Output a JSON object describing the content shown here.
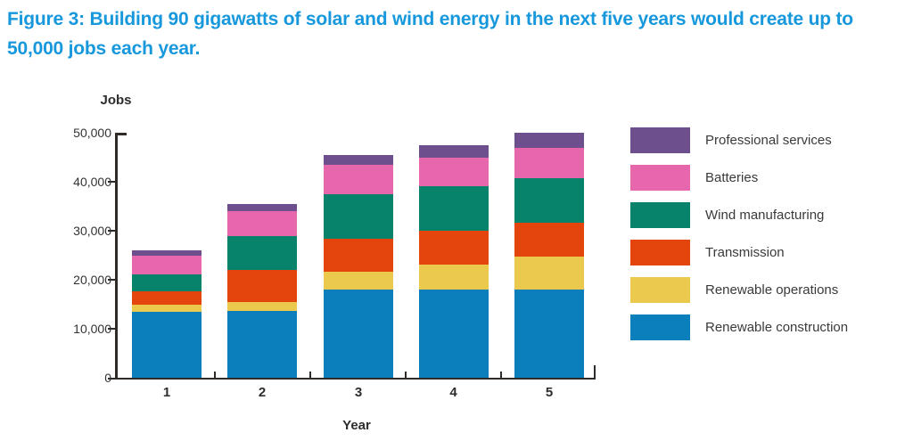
{
  "figure": {
    "title": "Figure 3: Building 90 gigawatts of solar and wind energy in the next five years would create up to 50,000 jobs each year.",
    "title_lines": [
      "Figure 3: Building 90 gigawatts of solar and wind energy in the next five years would create up to",
      "50,000 jobs each year."
    ],
    "title_color": "#1798dd"
  },
  "chart_data": {
    "type": "bar",
    "stacked": true,
    "xlabel": "Year",
    "ylabel": "Jobs",
    "categories": [
      "1",
      "2",
      "3",
      "4",
      "5"
    ],
    "ylim": [
      0,
      50000
    ],
    "y_tick_values": [
      0,
      10000,
      20000,
      30000,
      40000,
      50000
    ],
    "y_tick_labels": [
      "0",
      "10,000",
      "20,000",
      "30,000",
      "40,000",
      "50,000"
    ],
    "grid": false,
    "legend_position": "right",
    "series": [
      {
        "name": "Renewable construction",
        "color": "#0b7fbc",
        "values": [
          13500,
          13600,
          18000,
          18000,
          18000
        ]
      },
      {
        "name": "Renewable operations",
        "color": "#eac94d",
        "values": [
          1400,
          1900,
          3600,
          5100,
          6700
        ]
      },
      {
        "name": "Transmission",
        "color": "#e4450c",
        "values": [
          2800,
          6500,
          6800,
          6900,
          7000
        ]
      },
      {
        "name": "Wind manufacturing",
        "color": "#07826b",
        "values": [
          3400,
          7000,
          9100,
          9200,
          9100
        ]
      },
      {
        "name": "Batteries",
        "color": "#e767ac",
        "values": [
          3900,
          5000,
          6000,
          5800,
          6200
        ]
      },
      {
        "name": "Professional services",
        "color": "#6d4f8e",
        "values": [
          1000,
          1500,
          2000,
          2500,
          3000
        ]
      }
    ],
    "totals": [
      26000,
      35500,
      45500,
      47500,
      50000
    ],
    "legend": [
      {
        "name": "Professional services",
        "color": "#6d4f8e"
      },
      {
        "name": "Batteries",
        "color": "#e767ac"
      },
      {
        "name": "Wind manufacturing",
        "color": "#07826b"
      },
      {
        "name": "Transmission",
        "color": "#e4450c"
      },
      {
        "name": "Renewable operations",
        "color": "#eac94d"
      },
      {
        "name": "Renewable construction",
        "color": "#0b7fbc"
      }
    ]
  }
}
